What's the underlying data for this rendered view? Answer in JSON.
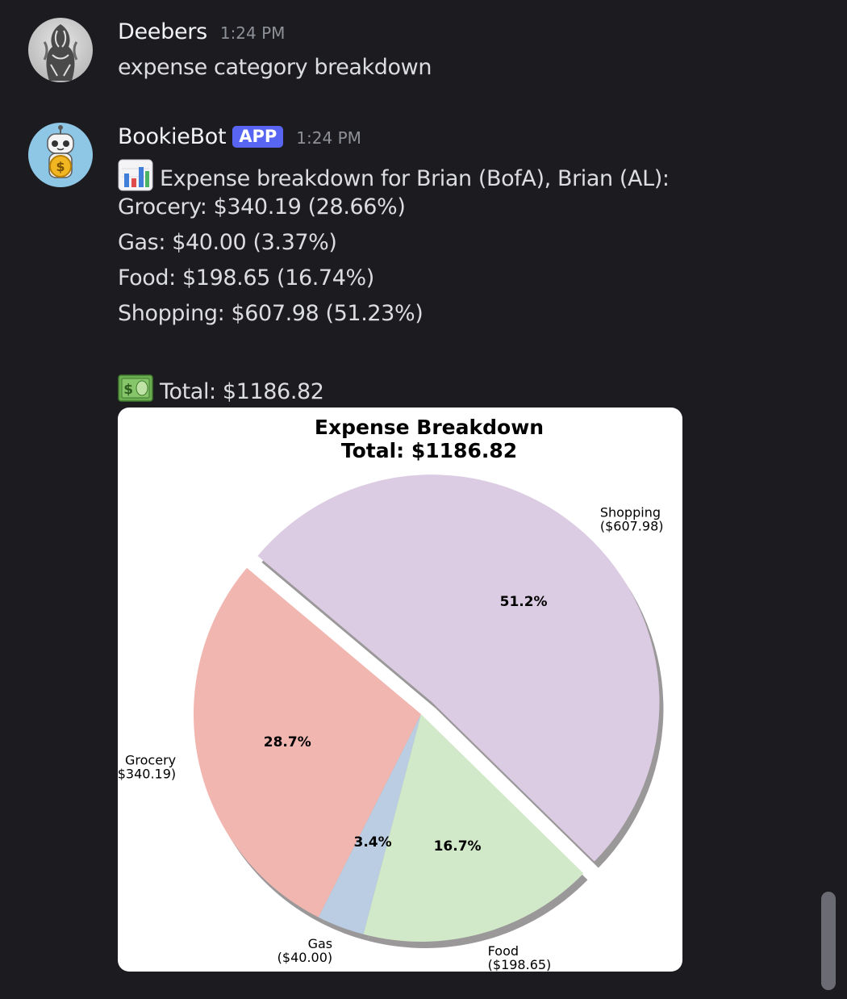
{
  "messages": [
    {
      "username": "Deebers",
      "timestamp": "1:24 PM",
      "text": "expense category breakdown"
    },
    {
      "username": "BookieBot",
      "badge": "APP",
      "timestamp": "1:24 PM",
      "lines": [
        "Expense breakdown for Brian (BofA), Brian (AL):",
        "Grocery: $340.19 (28.66%)",
        "Gas: $40.00 (3.37%)",
        "Food: $198.65 (16.74%)",
        "Shopping: $607.98 (51.23%)",
        "Total: $1186.82"
      ]
    }
  ],
  "icons": {
    "bar_chart": "bar-chart-icon",
    "money": "dollar-bill-icon"
  },
  "chart_data": {
    "type": "pie",
    "title": "Expense Breakdown",
    "subtitle": "Total: $1186.82",
    "slices": [
      {
        "label": "Grocery",
        "value": 340.19,
        "value_label": "($340.19)",
        "pct_label": "28.7%",
        "color": "#f2b6b0"
      },
      {
        "label": "Gas",
        "value": 40.0,
        "value_label": "($40.00)",
        "pct_label": "3.4%",
        "color": "#bacde2"
      },
      {
        "label": "Food",
        "value": 198.65,
        "value_label": "($198.65)",
        "pct_label": "16.7%",
        "color": "#d2e9c9"
      },
      {
        "label": "Shopping",
        "value": 607.98,
        "value_label": "($607.98)",
        "pct_label": "51.2%",
        "color": "#dccce3",
        "exploded": true
      }
    ],
    "shadow": true
  }
}
